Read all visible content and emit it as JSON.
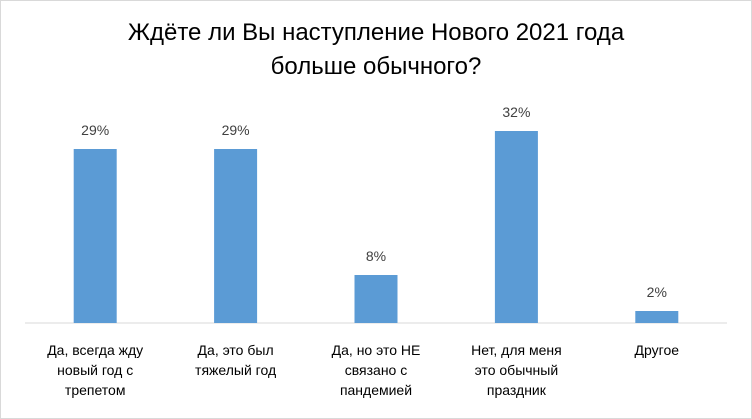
{
  "chart_data": {
    "type": "bar",
    "title_lines": [
      "Ждёте ли Вы наступление Нового 2021 года",
      "больше обычного?"
    ],
    "categories": [
      [
        "Да, всегда жду",
        "новый год с",
        "трепетом"
      ],
      [
        "Да, это был",
        "тяжелый год"
      ],
      [
        "Да, но это НЕ",
        "связано с",
        "пандемией"
      ],
      [
        "Нет, для меня",
        "это обычный",
        "праздник"
      ],
      [
        "Другое"
      ]
    ],
    "values": [
      29,
      29,
      8,
      32,
      2
    ],
    "value_labels": [
      "29%",
      "29%",
      "8%",
      "32%",
      "2%"
    ],
    "ylim": [
      0,
      32
    ],
    "xlabel": "",
    "ylabel": "",
    "grid": false,
    "legend": "none",
    "bar_color": "#5b9bd5",
    "axis_color": "#d9d9d9"
  }
}
